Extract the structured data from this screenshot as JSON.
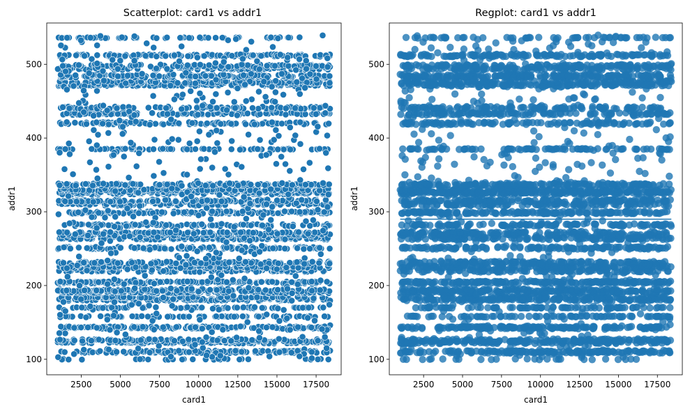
{
  "chart_data": [
    {
      "type": "scatter",
      "title": "Scatterplot: card1 vs addr1",
      "xlabel": "card1",
      "ylabel": "addr1",
      "xlim": [
        300,
        19100
      ],
      "ylim": [
        79,
        556
      ],
      "xticks": [
        2500,
        5000,
        7500,
        10000,
        12500,
        15000,
        17500
      ],
      "yticks": [
        100,
        200,
        300,
        400,
        500
      ],
      "marker_color": "#1f77b4",
      "marker_edge": "#ffffff",
      "x_range": [
        1000,
        18396
      ],
      "y_bands": [
        100,
        110,
        123,
        126,
        143,
        158,
        170,
        181,
        184,
        191,
        194,
        204,
        205,
        220,
        225,
        231,
        251,
        264,
        269,
        272,
        282,
        299,
        310,
        315,
        325,
        327,
        330,
        337,
        385,
        420,
        433,
        441,
        472,
        476,
        483,
        485,
        494,
        498,
        512,
        536
      ],
      "band_weights": [
        1,
        6,
        5,
        4,
        6,
        3,
        3,
        5,
        3,
        5,
        4,
        4,
        3,
        4,
        5,
        5,
        5,
        5,
        4,
        3,
        4,
        6,
        4,
        5,
        5,
        4,
        4,
        5,
        3,
        4,
        4,
        4,
        5,
        4,
        4,
        4,
        4,
        4,
        5,
        2
      ],
      "grid": false,
      "legend": "none"
    },
    {
      "type": "scatter",
      "title": "Regplot: card1 vs addr1",
      "xlabel": "card1",
      "ylabel": "addr1",
      "xlim": [
        300,
        19100
      ],
      "ylim": [
        79,
        556
      ],
      "xticks": [
        2500,
        5000,
        7500,
        10000,
        12500,
        15000,
        17500
      ],
      "yticks": [
        100,
        200,
        300,
        400,
        500
      ],
      "marker_color": "#1f77b4",
      "marker_alpha": 0.8,
      "x_range": [
        1000,
        18396
      ],
      "y_bands": [
        100,
        110,
        123,
        126,
        143,
        158,
        170,
        181,
        184,
        191,
        194,
        204,
        205,
        220,
        225,
        231,
        251,
        264,
        269,
        272,
        282,
        299,
        310,
        315,
        325,
        327,
        330,
        337,
        385,
        420,
        433,
        441,
        472,
        476,
        483,
        485,
        494,
        498,
        512,
        536
      ],
      "band_weights": [
        1,
        6,
        5,
        4,
        6,
        3,
        3,
        5,
        3,
        5,
        4,
        4,
        3,
        4,
        5,
        5,
        5,
        5,
        4,
        3,
        4,
        6,
        4,
        5,
        5,
        4,
        4,
        5,
        3,
        4,
        4,
        4,
        5,
        4,
        4,
        4,
        4,
        4,
        5,
        2
      ],
      "regression_line": {
        "slope": 0.0,
        "intercept": 290
      },
      "grid": false,
      "legend": "none"
    }
  ]
}
